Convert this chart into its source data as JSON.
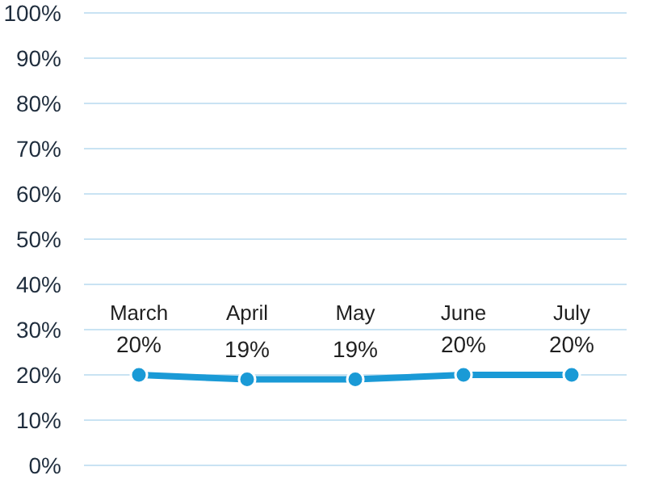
{
  "chart_data": {
    "type": "line",
    "categories": [
      "March",
      "April",
      "May",
      "June",
      "July"
    ],
    "series": [
      {
        "color": "#1a9ad6",
        "values": [
          20,
          19,
          19,
          20,
          20
        ],
        "value_labels": [
          "20%",
          "19%",
          "19%",
          "20%",
          "20%"
        ]
      }
    ],
    "ylim": [
      0,
      100
    ],
    "yticks": [
      {
        "value": 0,
        "label": "0%"
      },
      {
        "value": 10,
        "label": "10%"
      },
      {
        "value": 20,
        "label": "20%"
      },
      {
        "value": 30,
        "label": "30%"
      },
      {
        "value": 40,
        "label": "40%"
      },
      {
        "value": 50,
        "label": "50%"
      },
      {
        "value": 60,
        "label": "60%"
      },
      {
        "value": 70,
        "label": "70%"
      },
      {
        "value": 80,
        "label": "80%"
      },
      {
        "value": 90,
        "label": "90%"
      },
      {
        "value": 100,
        "label": "100%"
      }
    ],
    "grid": "y",
    "marker": "circle",
    "line_style": "solid"
  }
}
